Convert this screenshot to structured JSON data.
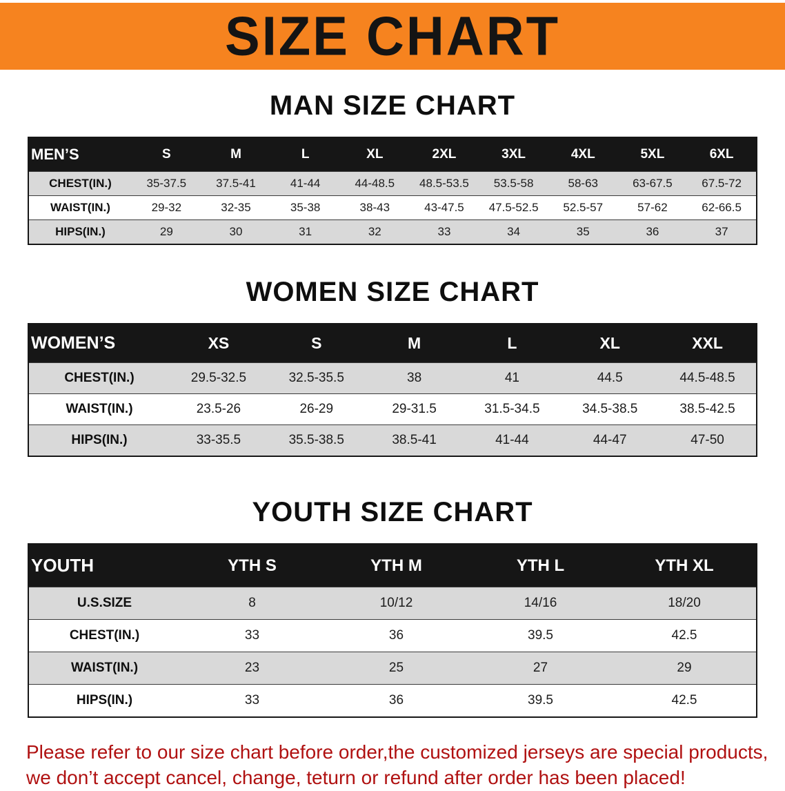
{
  "banner": {
    "title": "SIZE CHART"
  },
  "colors": {
    "banner_bg": "#f6831f",
    "table_header_bg": "#161616",
    "row_shade": "#d9d9d9",
    "disclaimer_text": "#b01111"
  },
  "sections": [
    {
      "id": "men",
      "heading": "MAN SIZE CHART",
      "table": {
        "header": [
          "MEN’S",
          "S",
          "M",
          "L",
          "XL",
          "2XL",
          "3XL",
          "4XL",
          "5XL",
          "6XL"
        ],
        "rows": [
          [
            "CHEST(IN.)",
            "35-37.5",
            "37.5-41",
            "41-44",
            "44-48.5",
            "48.5-53.5",
            "53.5-58",
            "58-63",
            "63-67.5",
            "67.5-72"
          ],
          [
            "WAIST(IN.)",
            "29-32",
            "32-35",
            "35-38",
            "38-43",
            "43-47.5",
            "47.5-52.5",
            "52.5-57",
            "57-62",
            "62-66.5"
          ],
          [
            "HIPS(IN.)",
            "29",
            "30",
            "31",
            "32",
            "33",
            "34",
            "35",
            "36",
            "37"
          ]
        ]
      }
    },
    {
      "id": "women",
      "heading": "WOMEN SIZE CHART",
      "table": {
        "header": [
          "WOMEN’S",
          "XS",
          "S",
          "M",
          "L",
          "XL",
          "XXL"
        ],
        "rows": [
          [
            "CHEST(IN.)",
            "29.5-32.5",
            "32.5-35.5",
            "38",
            "41",
            "44.5",
            "44.5-48.5"
          ],
          [
            "WAIST(IN.)",
            "23.5-26",
            "26-29",
            "29-31.5",
            "31.5-34.5",
            "34.5-38.5",
            "38.5-42.5"
          ],
          [
            "HIPS(IN.)",
            "33-35.5",
            "35.5-38.5",
            "38.5-41",
            "41-44",
            "44-47",
            "47-50"
          ]
        ]
      }
    },
    {
      "id": "youth",
      "heading": "YOUTH SIZE CHART",
      "table": {
        "header": [
          "YOUTH",
          "YTH S",
          "YTH M",
          "YTH L",
          "YTH XL"
        ],
        "rows": [
          [
            "U.S.SIZE",
            "8",
            "10/12",
            "14/16",
            "18/20"
          ],
          [
            "CHEST(IN.)",
            "33",
            "36",
            "39.5",
            "42.5"
          ],
          [
            "WAIST(IN.)",
            "23",
            "25",
            "27",
            "29"
          ],
          [
            "HIPS(IN.)",
            "33",
            "36",
            "39.5",
            "42.5"
          ]
        ]
      }
    }
  ],
  "disclaimer": {
    "line1": "Please refer to our size chart before order,the customized jerseys are special products,",
    "line2": "we don’t accept cancel, change, teturn or refund after order has been placed!"
  }
}
